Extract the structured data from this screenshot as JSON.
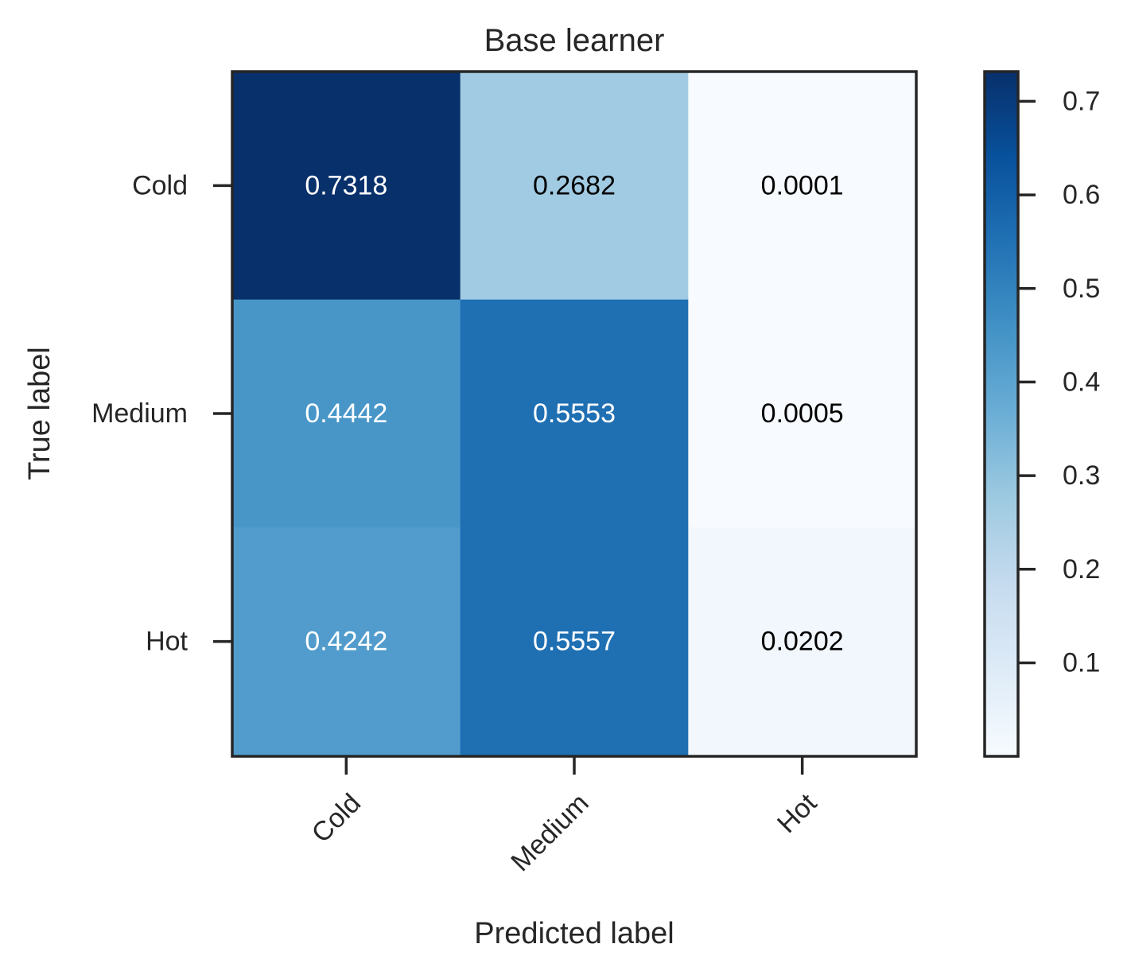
{
  "chart_data": {
    "type": "heatmap",
    "title": "Base learner",
    "xlabel": "Predicted label",
    "ylabel": "True label",
    "x_categories": [
      "Cold",
      "Medium",
      "Hot"
    ],
    "y_categories": [
      "Cold",
      "Medium",
      "Hot"
    ],
    "matrix": [
      [
        0.7318,
        0.2682,
        0.0001
      ],
      [
        0.4442,
        0.5553,
        0.0005
      ],
      [
        0.4242,
        0.5557,
        0.0202
      ]
    ],
    "cell_labels": [
      [
        "0.7318",
        "0.2682",
        "0.0001"
      ],
      [
        "0.4442",
        "0.5553",
        "0.0005"
      ],
      [
        "0.4242",
        "0.5557",
        "0.0202"
      ]
    ],
    "colormap": "Blues",
    "colorbar": {
      "range": [
        0.0001,
        0.7318
      ],
      "ticks": [
        0.1,
        0.2,
        0.3,
        0.4,
        0.5,
        0.6,
        0.7
      ],
      "tick_labels": [
        "0.1",
        "0.2",
        "0.3",
        "0.4",
        "0.5",
        "0.6",
        "0.7"
      ]
    },
    "text_colors": {
      "light": "#ffffff",
      "dark": "#000000"
    },
    "grid": false
  }
}
